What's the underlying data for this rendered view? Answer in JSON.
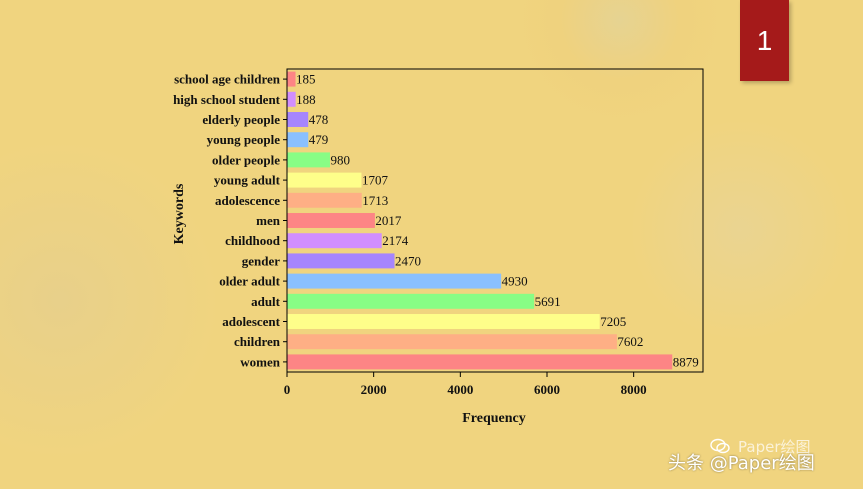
{
  "slide": {
    "number": "1"
  },
  "watermark": {
    "main": "头条 @Paper绘图",
    "faint": "Paper绘图"
  },
  "chart_data": {
    "type": "bar",
    "orientation": "horizontal",
    "title": "",
    "xlabel": "Frequency",
    "ylabel": "Keywords",
    "xlim": [
      0,
      9600
    ],
    "xticks": [
      0,
      2000,
      4000,
      6000,
      8000
    ],
    "categories": [
      "school age children",
      "high school student",
      "elderly people",
      "young people",
      "older people",
      "young adult",
      "adolescence",
      "men",
      "childhood",
      "gender",
      "older adult",
      "adult",
      "adolescent",
      "children",
      "women"
    ],
    "values": [
      185,
      188,
      478,
      479,
      980,
      1707,
      1713,
      2017,
      2174,
      2470,
      4930,
      5691,
      7205,
      7602,
      8879
    ],
    "colors": [
      "#fd8585",
      "#d18efe",
      "#a685fd",
      "#8ac0fe",
      "#88fd85",
      "#fefe8a",
      "#feaf85",
      "#fd8585",
      "#d18efe",
      "#a685fd",
      "#8ac0fe",
      "#88fd85",
      "#fefe8a",
      "#feaf85",
      "#fd8585"
    ],
    "data_labels": true,
    "grid": false,
    "legend": "none"
  }
}
